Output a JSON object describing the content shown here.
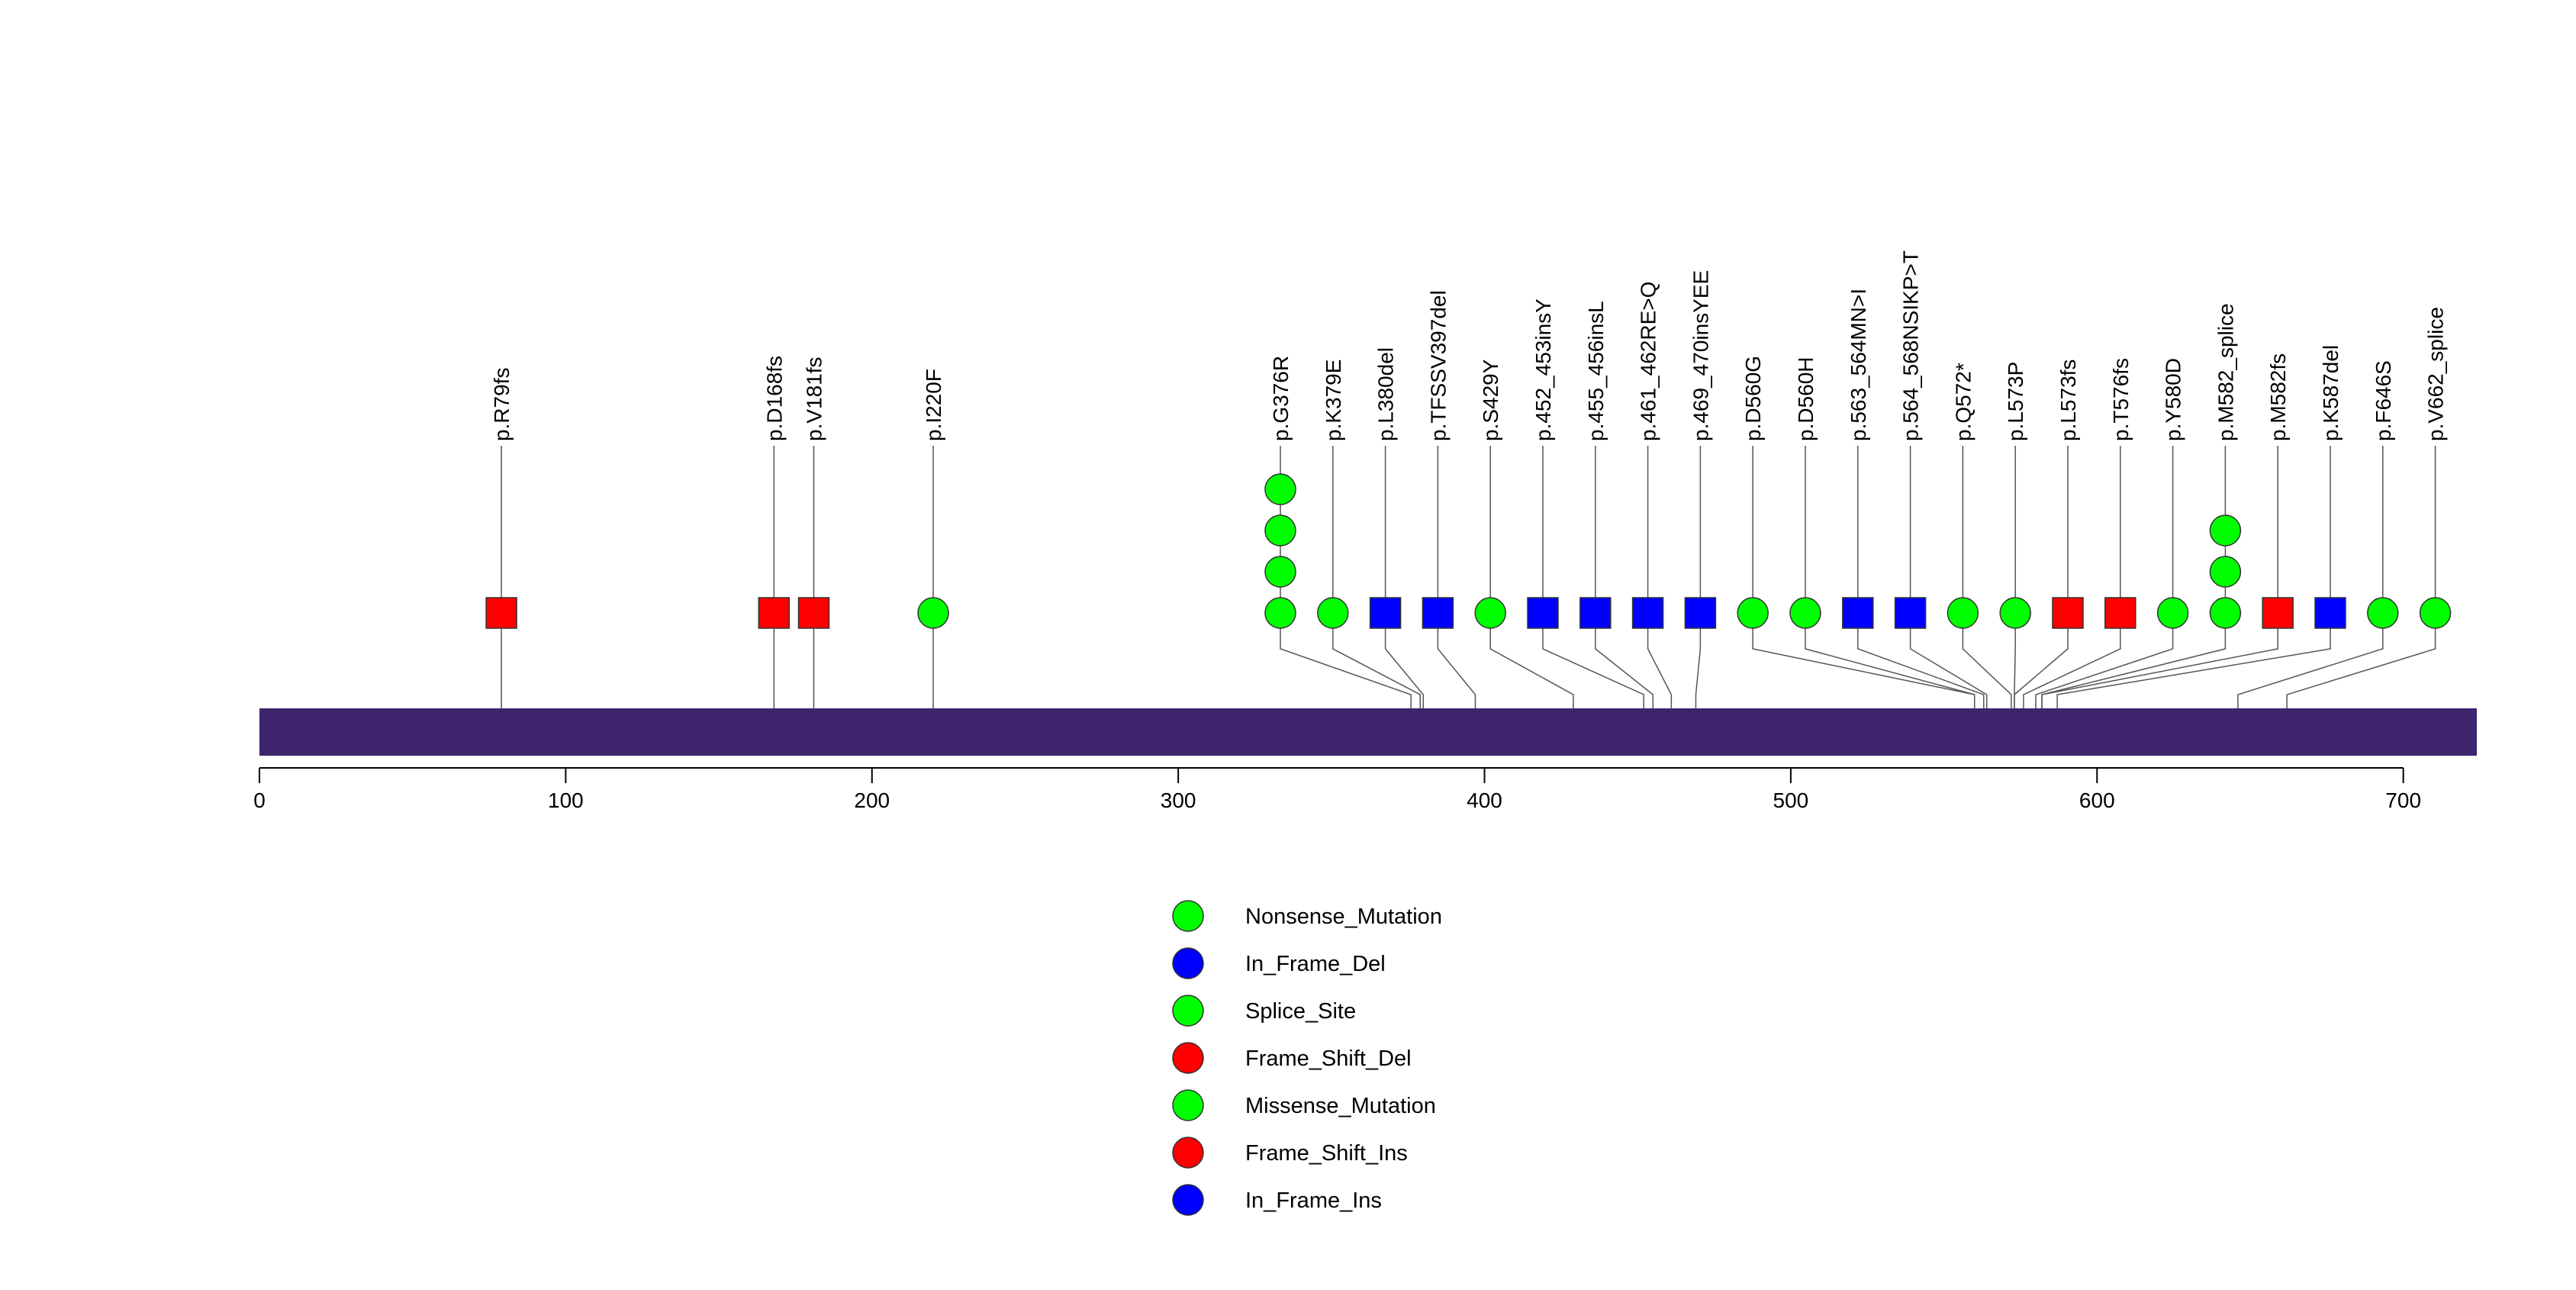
{
  "chart_data": {
    "type": "lollipop",
    "title": "",
    "xlabel": "",
    "ylabel": "",
    "xlim": [
      0,
      724
    ],
    "xticks": [
      0,
      100,
      200,
      300,
      400,
      500,
      600,
      700
    ],
    "protein_bar_color": "#3d246c",
    "legend": [
      {
        "label": "Nonsense_Mutation",
        "color": "#00ff00"
      },
      {
        "label": "In_Frame_Del",
        "color": "#0000ff"
      },
      {
        "label": "Splice_Site",
        "color": "#00ff00"
      },
      {
        "label": "Frame_Shift_Del",
        "color": "#ff0000"
      },
      {
        "label": "Missense_Mutation",
        "color": "#00ff00"
      },
      {
        "label": "Frame_Shift_Ins",
        "color": "#ff0000"
      },
      {
        "label": "In_Frame_Ins",
        "color": "#0000ff"
      }
    ],
    "mutations": [
      {
        "label": "p.R79fs",
        "position": 79,
        "count": 1,
        "shape": "square",
        "color": "#ff0000"
      },
      {
        "label": "p.D168fs",
        "position": 168,
        "count": 1,
        "shape": "square",
        "color": "#ff0000"
      },
      {
        "label": "p.V181fs",
        "position": 181,
        "count": 1,
        "shape": "square",
        "color": "#ff0000"
      },
      {
        "label": "p.I220F",
        "position": 220,
        "count": 1,
        "shape": "circle",
        "color": "#00ff00"
      },
      {
        "label": "p.G376R",
        "position": 376,
        "count": 4,
        "shape": "circle",
        "color": "#00ff00"
      },
      {
        "label": "p.K379E",
        "position": 379,
        "count": 1,
        "shape": "circle",
        "color": "#00ff00"
      },
      {
        "label": "p.L380del",
        "position": 380,
        "count": 1,
        "shape": "square",
        "color": "#0000ff"
      },
      {
        "label": "p.TFSSV397del",
        "position": 397,
        "count": 1,
        "shape": "square",
        "color": "#0000ff"
      },
      {
        "label": "p.S429Y",
        "position": 429,
        "count": 1,
        "shape": "circle",
        "color": "#00ff00"
      },
      {
        "label": "p.452_453insY",
        "position": 452,
        "count": 1,
        "shape": "square",
        "color": "#0000ff"
      },
      {
        "label": "p.455_456insL",
        "position": 455,
        "count": 1,
        "shape": "square",
        "color": "#0000ff"
      },
      {
        "label": "p.461_462RE>Q",
        "position": 461,
        "count": 1,
        "shape": "square",
        "color": "#0000ff"
      },
      {
        "label": "p.469_470insYEE",
        "position": 469,
        "count": 1,
        "shape": "square",
        "color": "#0000ff"
      },
      {
        "label": "p.D560G",
        "position": 560,
        "count": 1,
        "shape": "circle",
        "color": "#00ff00"
      },
      {
        "label": "p.D560H",
        "position": 560,
        "count": 1,
        "shape": "circle",
        "color": "#00ff00"
      },
      {
        "label": "p.563_564MN>I",
        "position": 563,
        "count": 1,
        "shape": "square",
        "color": "#0000ff"
      },
      {
        "label": "p.564_568NSIKP>T",
        "position": 564,
        "count": 1,
        "shape": "square",
        "color": "#0000ff"
      },
      {
        "label": "p.Q572*",
        "position": 572,
        "count": 1,
        "shape": "circle",
        "color": "#00ff00"
      },
      {
        "label": "p.L573P",
        "position": 573,
        "count": 1,
        "shape": "circle",
        "color": "#00ff00"
      },
      {
        "label": "p.L573fs",
        "position": 573,
        "count": 1,
        "shape": "square",
        "color": "#ff0000"
      },
      {
        "label": "p.T576fs",
        "position": 576,
        "count": 1,
        "shape": "square",
        "color": "#ff0000"
      },
      {
        "label": "p.Y580D",
        "position": 580,
        "count": 1,
        "shape": "circle",
        "color": "#00ff00"
      },
      {
        "label": "p.M582_splice",
        "position": 582,
        "count": 3,
        "shape": "circle",
        "color": "#00ff00"
      },
      {
        "label": "p.M582fs",
        "position": 582,
        "count": 1,
        "shape": "square",
        "color": "#ff0000"
      },
      {
        "label": "p.K587del",
        "position": 587,
        "count": 1,
        "shape": "square",
        "color": "#0000ff"
      },
      {
        "label": "p.F646S",
        "position": 646,
        "count": 1,
        "shape": "circle",
        "color": "#00ff00"
      },
      {
        "label": "p.V662_splice",
        "position": 662,
        "count": 1,
        "shape": "circle",
        "color": "#00ff00"
      }
    ]
  }
}
